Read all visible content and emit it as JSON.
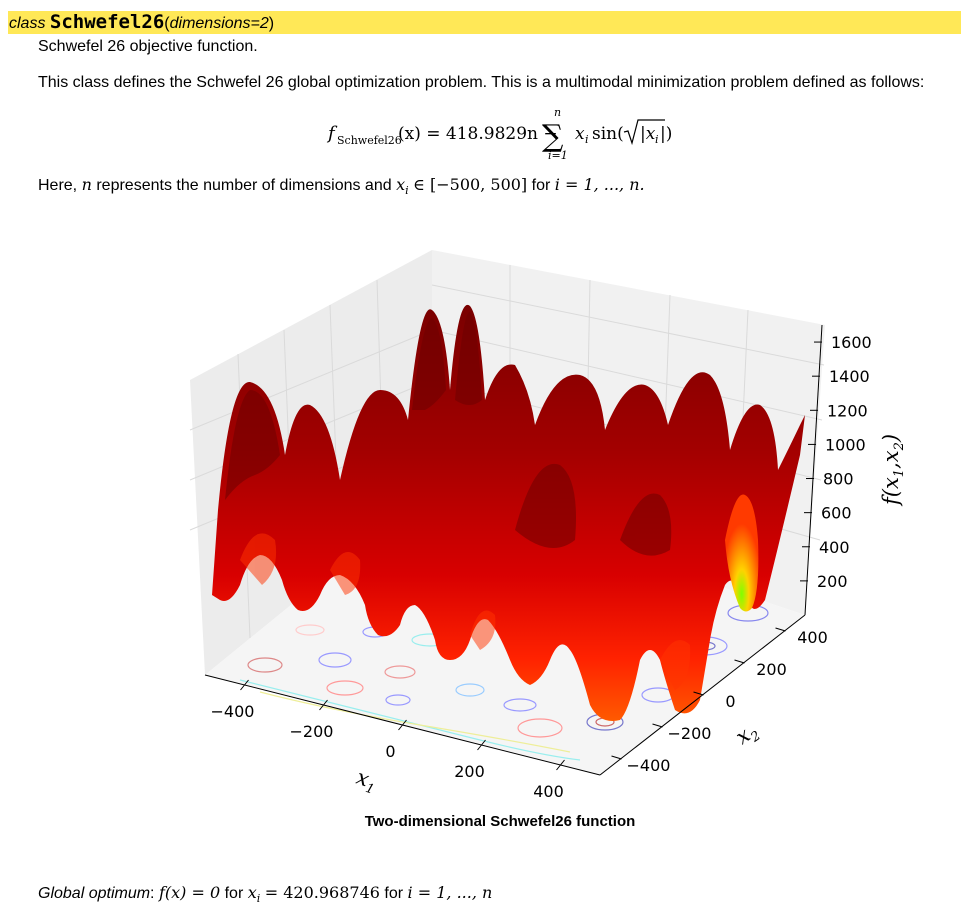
{
  "signature": {
    "keyword": "class",
    "name": "Schwefel26",
    "open_paren": "(",
    "params": "dimensions=2",
    "close_paren": ")"
  },
  "summary": "Schwefel 26 objective function.",
  "description": "This class defines the Schwefel 26 global optimization problem. This is a multimodal minimization problem defined as follows:",
  "formula": {
    "lhs_f": "f",
    "lhs_sub": "Schwefel26",
    "lhs_arg": "(x) = 418.9829n −",
    "sum_top": "n",
    "sum_bottom": "i=1",
    "rhs_term": "x",
    "rhs_sub": "i",
    "rhs_sin": "sin(",
    "rhs_abs": "|x",
    "rhs_abs_sub": "i",
    "rhs_close": "|)"
  },
  "domain_text": {
    "prefix": "Here,",
    "n": "n",
    "middle": "represents the number of dimensions and",
    "xi": "x",
    "xi_sub": "i",
    "in": "∈ [−500, 500]",
    "for": "for",
    "range": "i = 1, ..., n."
  },
  "chart_data": {
    "type": "surface3d",
    "title": "Two-dimensional Schwefel26 function",
    "xlabel": "x",
    "xlabel_sub": "1",
    "ylabel": "x",
    "ylabel_sub": "2",
    "zlabel": "f(x",
    "zlabel_sub1": "1",
    "zlabel_mid": ",x",
    "zlabel_sub2": "2",
    "zlabel_close": ")",
    "x_ticks": [
      "−400",
      "−200",
      "0",
      "200",
      "400"
    ],
    "y_ticks": [
      "−400",
      "−200",
      "0",
      "200",
      "400"
    ],
    "z_ticks": [
      "200",
      "400",
      "600",
      "800",
      "1000",
      "1200",
      "1400",
      "1600"
    ],
    "xlim": [
      -500,
      500
    ],
    "ylim": [
      -500,
      500
    ],
    "zlim": [
      0,
      1700
    ],
    "colormap": "jet (surface mostly red), contour projection on floor",
    "colors": {
      "surface_dark": "#8b0000",
      "surface_mid": "#cc0000",
      "surface_bright": "#ff2a00",
      "minimum": "#7fff00"
    }
  },
  "optimum": {
    "label": "Global optimum",
    "colon": ":",
    "expr1": "f(x) = 0",
    "for1": "for",
    "expr2": "x",
    "expr2_sub": "i",
    "expr2_val": "= 420.968746",
    "for2": "for",
    "expr3": "i = 1, ..., n"
  }
}
